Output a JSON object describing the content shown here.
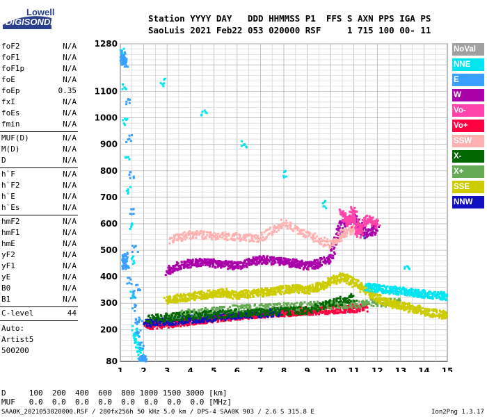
{
  "logo": {
    "top": "Lowell",
    "main": "DIGISONDE"
  },
  "header": {
    "line1": "Station YYYY DAY   DDD HHMMSS P1  FFS S AXN PPS IGA PS",
    "line2": "SaoLuis 2021 Feb22 053 020000 RSF     1 715 100 00- 11"
  },
  "params_group1": [
    {
      "name": "foF2",
      "value": "N/A"
    },
    {
      "name": "foF1",
      "value": "N/A"
    },
    {
      "name": "foF1p",
      "value": "N/A"
    },
    {
      "name": "foE",
      "value": "N/A"
    },
    {
      "name": "foEp",
      "value": "0.35"
    },
    {
      "name": "fxI",
      "value": "N/A"
    },
    {
      "name": "foEs",
      "value": "N/A"
    },
    {
      "name": "fmin",
      "value": "N/A"
    }
  ],
  "params_group2": [
    {
      "name": "MUF(D)",
      "value": "N/A"
    },
    {
      "name": "M(D)",
      "value": "N/A"
    },
    {
      "name": "D",
      "value": "N/A"
    }
  ],
  "params_group3": [
    {
      "name": "h`F",
      "value": "N/A"
    },
    {
      "name": "h`F2",
      "value": "N/A"
    },
    {
      "name": "h`E",
      "value": "N/A"
    },
    {
      "name": "h`Es",
      "value": "N/A"
    }
  ],
  "params_group4": [
    {
      "name": "hmF2",
      "value": "N/A"
    },
    {
      "name": "hmF1",
      "value": "N/A"
    },
    {
      "name": "hmE",
      "value": "N/A"
    },
    {
      "name": "yF2",
      "value": "N/A"
    },
    {
      "name": "yF1",
      "value": "N/A"
    },
    {
      "name": "yE",
      "value": "N/A"
    },
    {
      "name": "B0",
      "value": "N/A"
    },
    {
      "name": "B1",
      "value": "N/A"
    }
  ],
  "clevel": {
    "name": "C-level",
    "value": "44"
  },
  "auto": [
    "Auto:",
    "Artist5",
    "500200"
  ],
  "legend": [
    {
      "label": "NoVal",
      "color": "#a0a0a0"
    },
    {
      "label": "NNE",
      "color": "#00e5f0"
    },
    {
      "label": "E",
      "color": "#3aa0ff"
    },
    {
      "label": "W",
      "color": "#aa00aa"
    },
    {
      "label": "Vo-",
      "color": "#ff44aa"
    },
    {
      "label": "Vo+",
      "color": "#ff0040"
    },
    {
      "label": "SSW",
      "color": "#ffb0b0"
    },
    {
      "label": "X-",
      "color": "#006600"
    },
    {
      "label": "X+",
      "color": "#66aa55"
    },
    {
      "label": "SSE",
      "color": "#cccc00"
    },
    {
      "label": "NNW",
      "color": "#1010c0"
    }
  ],
  "footer": {
    "line1": "D     100  200  400  600  800 1000 1500 3000 [km]",
    "line2": "MUF   0.0  0.0  0.0  0.0  0.0  0.0  0.0  0.0 [MHz]",
    "line3": "SAA0K_2021053020000.RSF / 280fx256h 50 kHz 5.0 km / DPS-4 SAA0K 903 / 2.6 S 315.8 E",
    "version": "Ion2Png 1.3.17"
  },
  "chart_data": {
    "type": "scatter",
    "x_ticks": [
      1,
      2,
      3,
      4,
      5,
      6,
      7,
      8,
      9,
      10,
      11,
      12,
      13,
      14,
      15
    ],
    "y_ticks": [
      80,
      200,
      300,
      400,
      500,
      600,
      700,
      800,
      900,
      1000,
      1100,
      1280
    ],
    "xlim": [
      1,
      15
    ],
    "ylim": [
      80,
      1280
    ],
    "grid": true,
    "legend_position": "right",
    "traces": [
      {
        "name": "Vo+",
        "color": "#ff0040",
        "points": [
          [
            2.1,
            215
          ],
          [
            2.5,
            218
          ],
          [
            3,
            222
          ],
          [
            3.5,
            226
          ],
          [
            4,
            232
          ],
          [
            4.5,
            238
          ],
          [
            5,
            243
          ],
          [
            5.5,
            248
          ],
          [
            6,
            252
          ],
          [
            6.5,
            256
          ],
          [
            7,
            259
          ],
          [
            7.5,
            262
          ],
          [
            8,
            265
          ],
          [
            8.5,
            268
          ],
          [
            9,
            270
          ],
          [
            9.5,
            272
          ],
          [
            10,
            275
          ],
          [
            10.5,
            278
          ],
          [
            11,
            280
          ],
          [
            11.5,
            282
          ]
        ]
      },
      {
        "name": "NNW",
        "color": "#1010c0",
        "points": [
          [
            2.1,
            225
          ],
          [
            2.6,
            228
          ],
          [
            3.1,
            232
          ],
          [
            3.6,
            236
          ],
          [
            4.2,
            240
          ],
          [
            4.8,
            245
          ],
          [
            5.4,
            250
          ],
          [
            6,
            255
          ],
          [
            6.6,
            258
          ],
          [
            7.2,
            262
          ],
          [
            7.8,
            266
          ]
        ]
      },
      {
        "name": "X+",
        "color": "#66aa55",
        "points": [
          [
            3,
            250
          ],
          [
            4,
            262
          ],
          [
            5,
            270
          ],
          [
            6,
            278
          ],
          [
            7,
            282
          ],
          [
            8,
            286
          ],
          [
            9,
            290
          ],
          [
            10,
            292
          ],
          [
            11,
            296
          ],
          [
            12,
            300
          ],
          [
            13,
            305
          ]
        ]
      },
      {
        "name": "SSE",
        "color": "#cccc00",
        "points": [
          [
            3,
            310
          ],
          [
            3.5,
            318
          ],
          [
            4,
            325
          ],
          [
            4.5,
            330
          ],
          [
            5,
            335
          ],
          [
            5.5,
            340
          ],
          [
            6,
            330
          ],
          [
            6.5,
            335
          ],
          [
            7,
            340
          ],
          [
            7.5,
            345
          ],
          [
            8,
            350
          ],
          [
            8.5,
            355
          ],
          [
            9,
            350
          ],
          [
            9.5,
            360
          ],
          [
            10,
            380
          ],
          [
            10.5,
            400
          ],
          [
            11,
            380
          ],
          [
            11.5,
            350
          ],
          [
            12,
            320
          ],
          [
            12.5,
            300
          ],
          [
            13,
            290
          ],
          [
            13.5,
            280
          ],
          [
            14,
            270
          ],
          [
            14.5,
            260
          ],
          [
            15,
            255
          ]
        ]
      },
      {
        "name": "NNE",
        "color": "#00e5f0",
        "points": [
          [
            11.6,
            360
          ],
          [
            12,
            355
          ],
          [
            12.5,
            350
          ],
          [
            13,
            345
          ],
          [
            13.5,
            340
          ],
          [
            14,
            335
          ],
          [
            14.5,
            330
          ],
          [
            15,
            325
          ],
          [
            1.1,
            1250
          ],
          [
            1.6,
            200
          ],
          [
            1.9,
            90
          ]
        ]
      },
      {
        "name": "W",
        "color": "#aa00aa",
        "points": [
          [
            3,
            420
          ],
          [
            3.5,
            440
          ],
          [
            4,
            450
          ],
          [
            4.5,
            455
          ],
          [
            5,
            450
          ],
          [
            5.5,
            445
          ],
          [
            6,
            440
          ],
          [
            6.5,
            455
          ],
          [
            7,
            465
          ],
          [
            7.5,
            460
          ],
          [
            8,
            455
          ],
          [
            8.5,
            450
          ],
          [
            9,
            440
          ],
          [
            9.5,
            450
          ],
          [
            10,
            470
          ],
          [
            10.5,
            600
          ],
          [
            11,
            620
          ],
          [
            11.5,
            560
          ],
          [
            12,
            580
          ]
        ]
      },
      {
        "name": "SSW",
        "color": "#ffb0b0",
        "points": [
          [
            3.2,
            540
          ],
          [
            4,
            560
          ],
          [
            5,
            555
          ],
          [
            6,
            550
          ],
          [
            7,
            545
          ],
          [
            8,
            600
          ],
          [
            9,
            560
          ],
          [
            10,
            520
          ],
          [
            10.5,
            560
          ],
          [
            11,
            580
          ]
        ]
      },
      {
        "name": "Vo-",
        "color": "#ff44aa",
        "points": [
          [
            10.5,
            640
          ],
          [
            10.8,
            600
          ],
          [
            11,
            650
          ],
          [
            11.2,
            560
          ],
          [
            11.5,
            620
          ],
          [
            12,
            600
          ]
        ]
      },
      {
        "name": "E",
        "color": "#3aa0ff",
        "points": [
          [
            1.1,
            1240
          ],
          [
            1.2,
            1200
          ],
          [
            1.9,
            85
          ],
          [
            2,
            88
          ],
          [
            1.2,
            480
          ],
          [
            1.2,
            440
          ]
        ]
      },
      {
        "name": "X-",
        "color": "#006600",
        "points": [
          [
            2.2,
            240
          ],
          [
            3,
            246
          ],
          [
            4,
            252
          ],
          [
            5,
            258
          ],
          [
            6,
            262
          ],
          [
            7,
            265
          ],
          [
            8,
            270
          ],
          [
            9,
            272
          ],
          [
            10,
            300
          ],
          [
            11,
            320
          ]
        ]
      }
    ]
  }
}
